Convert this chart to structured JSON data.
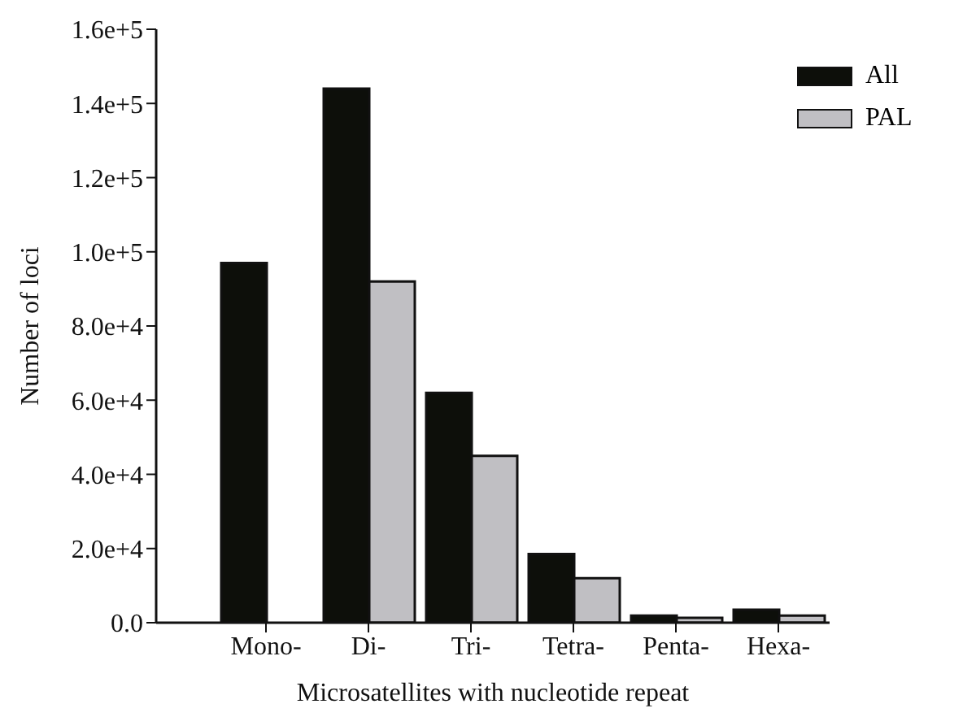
{
  "chart_data": {
    "type": "bar",
    "xlabel": "Microsatellites with nucleotide repeat",
    "ylabel": "Number of loci",
    "categories": [
      "Mono-",
      "Di-",
      "Tri-",
      "Tetra-",
      "Penta-",
      "Hexa-"
    ],
    "series": [
      {
        "name": "All",
        "color": "#0d0f0a",
        "values": [
          97000,
          144000,
          62000,
          18500,
          1900,
          3500
        ]
      },
      {
        "name": "PAL",
        "color": "#c0bfc3",
        "values": [
          null,
          92000,
          45000,
          12000,
          1300,
          1900
        ]
      }
    ],
    "ylim": [
      0,
      160000
    ],
    "yticks": [
      {
        "value": 0,
        "label": "0.0"
      },
      {
        "value": 20000,
        "label": "2.0e+4"
      },
      {
        "value": 40000,
        "label": "4.0e+4"
      },
      {
        "value": 60000,
        "label": "6.0e+4"
      },
      {
        "value": 80000,
        "label": "8.0e+4"
      },
      {
        "value": 100000,
        "label": "1.0e+5"
      },
      {
        "value": 120000,
        "label": "1.2e+5"
      },
      {
        "value": 140000,
        "label": "1.4e+5"
      },
      {
        "value": 160000,
        "label": "1.6e+5"
      }
    ],
    "grid": false,
    "legend": "top right"
  }
}
